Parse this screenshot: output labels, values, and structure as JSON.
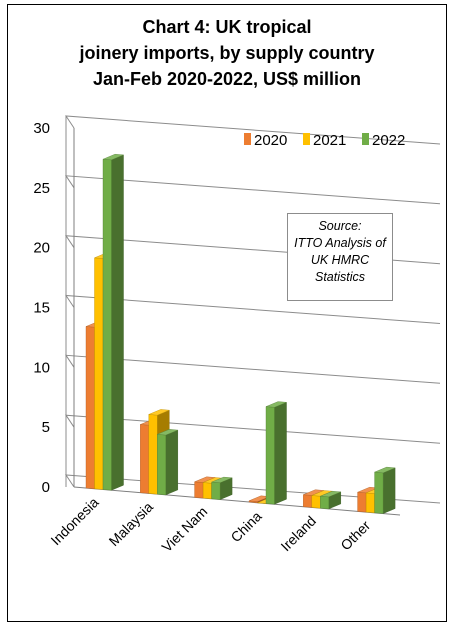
{
  "title_lines": [
    "Chart 4: UK tropical",
    "joinery imports, by supply country",
    "Jan-Feb 2020-2022, US$ million"
  ],
  "source_note": [
    "Source:",
    "ITTO Analysis of",
    "UK HMRC",
    "Statistics"
  ],
  "colors": {
    "2020": "#ED7D31",
    "2021": "#FFC000",
    "2022": "#70AD47"
  },
  "chart_data": {
    "type": "bar",
    "title": "Chart 4: UK tropical joinery imports, by supply country Jan-Feb 2020-2022, US$ million",
    "categories": [
      "Indonesia",
      "Malaysia",
      "Viet Nam",
      "China",
      "Ireland",
      "Other"
    ],
    "series": [
      {
        "name": "2020",
        "values": [
          13.5,
          5.7,
          1.3,
          0.1,
          1.0,
          1.6
        ]
      },
      {
        "name": "2021",
        "values": [
          19.3,
          6.6,
          1.3,
          0.0,
          1.0,
          1.6
        ]
      },
      {
        "name": "2022",
        "values": [
          27.6,
          5.0,
          1.4,
          8.1,
          1.0,
          3.4
        ]
      }
    ],
    "yticks": [
      0,
      5,
      10,
      15,
      20,
      25,
      30
    ],
    "ylim": [
      0,
      30
    ],
    "xlabel": "",
    "ylabel": "",
    "grid": true,
    "legend": "top-right",
    "style": "3d-clustered-column"
  }
}
